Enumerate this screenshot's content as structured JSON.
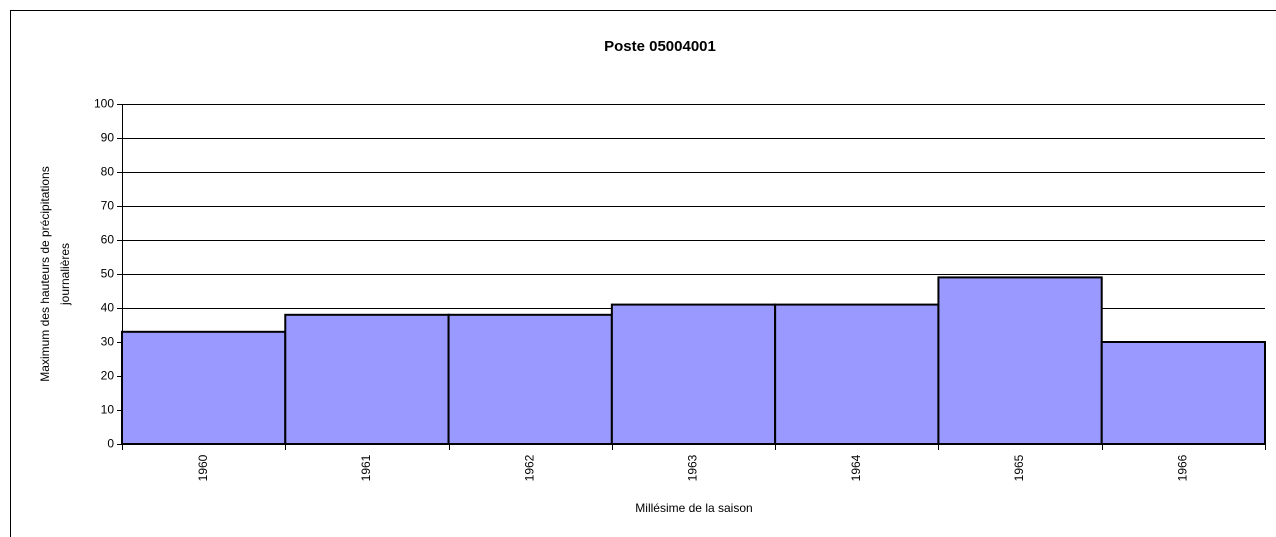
{
  "chart_data": {
    "type": "bar",
    "title": "Poste 05004001",
    "xlabel": "Millésime de la saison",
    "ylabel": [
      "Maximum des hauteurs de précipitations",
      "journalières"
    ],
    "categories": [
      "1960",
      "1961",
      "1962",
      "1963",
      "1964",
      "1965",
      "1966"
    ],
    "values": [
      33,
      38,
      38,
      41,
      41,
      49,
      30
    ],
    "color": "#9999ff",
    "ylim": [
      0,
      100
    ],
    "yticks": [
      0,
      10,
      20,
      30,
      40,
      50,
      60,
      70,
      80,
      90,
      100
    ],
    "grid": true
  }
}
